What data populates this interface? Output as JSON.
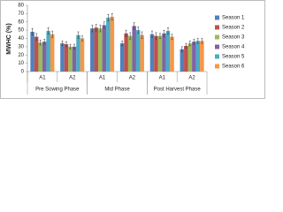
{
  "chart_data": {
    "type": "bar",
    "y_label": "MWHC (%)",
    "categories": [
      "A1",
      "A2",
      "A1",
      "A2",
      "A1",
      "A2"
    ],
    "phases": [
      "Pre Sowing Phase",
      "Mid Phase",
      "Post Harvest Phase"
    ],
    "series": [
      {
        "name": "Season 1",
        "color": "#4f81bd",
        "values": [
          48,
          34,
          52,
          34,
          45,
          27
        ],
        "errors": [
          4,
          3,
          4,
          3,
          4,
          3
        ]
      },
      {
        "name": "Season 2",
        "color": "#c0504d",
        "values": [
          42,
          33,
          53,
          46,
          43,
          31
        ],
        "errors": [
          4,
          3,
          4,
          4,
          4,
          3
        ]
      },
      {
        "name": "Season 3",
        "color": "#9bbb59",
        "values": [
          35,
          30,
          52,
          43,
          43,
          34
        ],
        "errors": [
          3,
          3,
          4,
          4,
          3,
          3
        ]
      },
      {
        "name": "Season 4",
        "color": "#8064a2",
        "values": [
          36,
          30,
          56,
          55,
          46,
          36
        ],
        "errors": [
          3,
          3,
          4,
          4,
          4,
          3
        ]
      },
      {
        "name": "Season 5",
        "color": "#4bacc6",
        "values": [
          49,
          44,
          65,
          50,
          49,
          37
        ],
        "errors": [
          4,
          4,
          4,
          4,
          4,
          3
        ]
      },
      {
        "name": "Season 6",
        "color": "#f79646",
        "values": [
          45,
          40,
          66,
          44,
          42,
          37
        ],
        "errors": [
          4,
          3,
          4,
          4,
          3,
          3
        ]
      }
    ],
    "ylim": [
      0,
      80
    ],
    "yticks": [
      0,
      10,
      20,
      30,
      40,
      50,
      60,
      70,
      80
    ],
    "grid": false,
    "legend": "right"
  }
}
